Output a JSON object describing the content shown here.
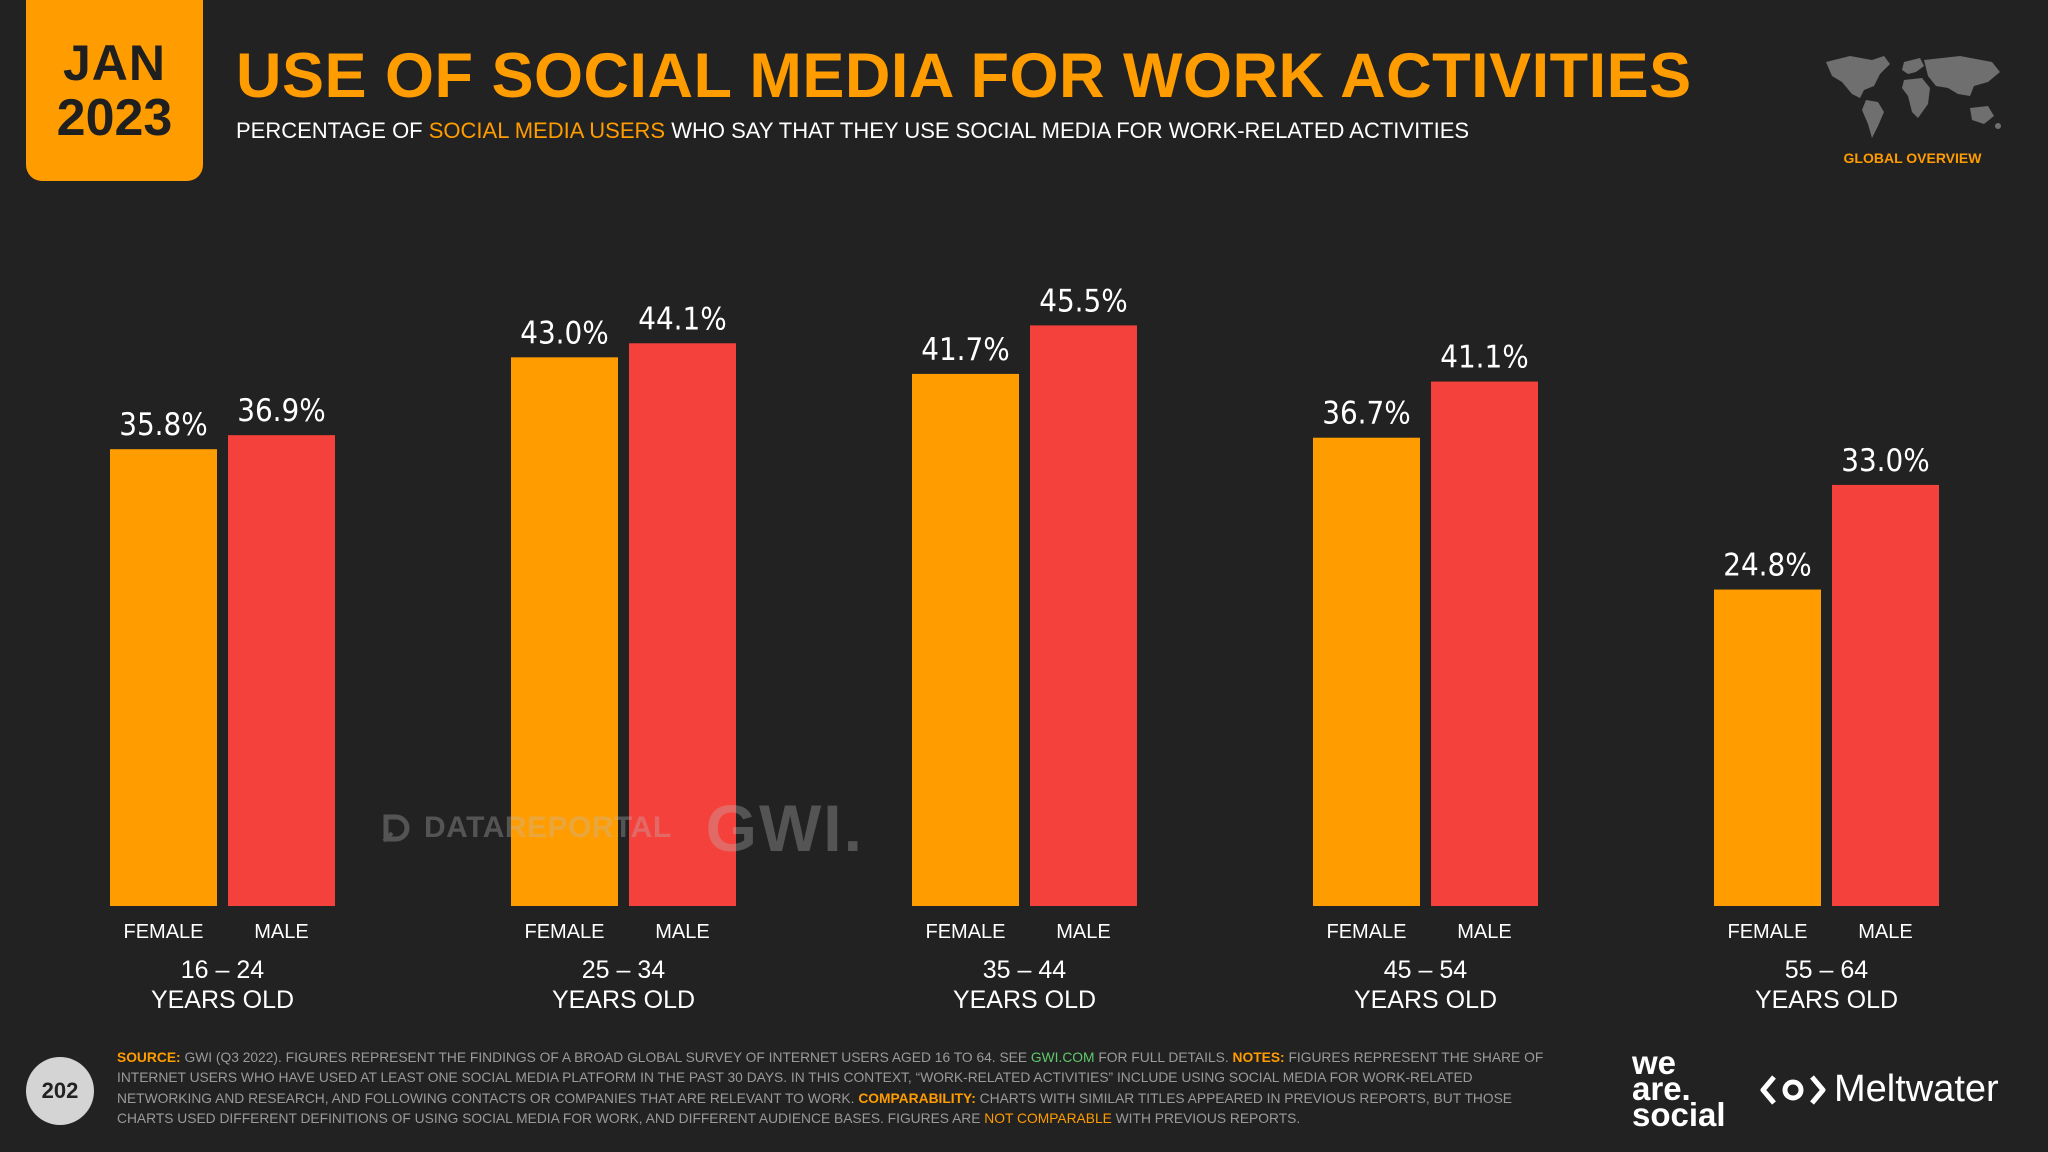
{
  "header": {
    "month": "JAN",
    "year": "2023",
    "title": "USE OF SOCIAL MEDIA FOR WORK ACTIVITIES",
    "subtitle_pre": "PERCENTAGE OF ",
    "subtitle_highlight": "SOCIAL MEDIA USERS",
    "subtitle_post": " WHO SAY THAT THEY USE SOCIAL MEDIA FOR WORK-RELATED ACTIVITIES",
    "section_label": "GLOBAL OVERVIEW"
  },
  "colors": {
    "female": "#ff9c00",
    "male": "#f5413b",
    "accent": "#ff9c00",
    "background": "#222222"
  },
  "chart_data": {
    "type": "bar",
    "categories": [
      "16 – 24",
      "25 – 34",
      "35 – 44",
      "45 – 54",
      "55 – 64"
    ],
    "category_sublabel": "YEARS OLD",
    "series": [
      {
        "name": "FEMALE",
        "values": [
          35.8,
          43.0,
          41.7,
          36.7,
          24.8
        ]
      },
      {
        "name": "MALE",
        "values": [
          36.9,
          44.1,
          45.5,
          41.1,
          33.0
        ]
      }
    ],
    "value_suffix": "%",
    "ylim": [
      0,
      50
    ],
    "title": "USE OF SOCIAL MEDIA FOR WORK ACTIVITIES",
    "xlabel": "",
    "ylabel": ""
  },
  "watermark": {
    "datareportal": "DATAREPORTAL",
    "gwi": "GWI."
  },
  "footer": {
    "page_number": "202",
    "source_label": "SOURCE:",
    "source_text_1": " GWI (Q3 2022). FIGURES REPRESENT THE FINDINGS OF A BROAD GLOBAL SURVEY OF INTERNET USERS AGED 16 TO 64. SEE ",
    "source_link": "GWI.COM",
    "source_text_2": " FOR FULL DETAILS. ",
    "notes_label": "NOTES:",
    "notes_text": " FIGURES REPRESENT THE SHARE OF INTERNET USERS WHO HAVE USED AT LEAST ONE SOCIAL MEDIA PLATFORM IN THE PAST 30 DAYS. IN THIS CONTEXT, “WORK-RELATED ACTIVITIES” INCLUDE USING SOCIAL MEDIA FOR WORK-RELATED NETWORKING AND RESEARCH, AND FOLLOWING CONTACTS OR COMPANIES THAT ARE RELEVANT TO WORK. ",
    "comparability_label": "COMPARABILITY:",
    "comparability_text": " CHARTS WITH SIMILAR TITLES APPEARED IN PREVIOUS REPORTS, BUT THOSE CHARTS USED DIFFERENT DEFINITIONS OF USING SOCIAL MEDIA FOR WORK, AND DIFFERENT AUDIENCE BASES. FIGURES ARE ",
    "not_comparable": "NOT COMPARABLE",
    "comparability_end": " WITH PREVIOUS REPORTS.",
    "brand_we": "we",
    "brand_are": "are.",
    "brand_social": "social",
    "brand_meltwater": "Meltwater"
  }
}
